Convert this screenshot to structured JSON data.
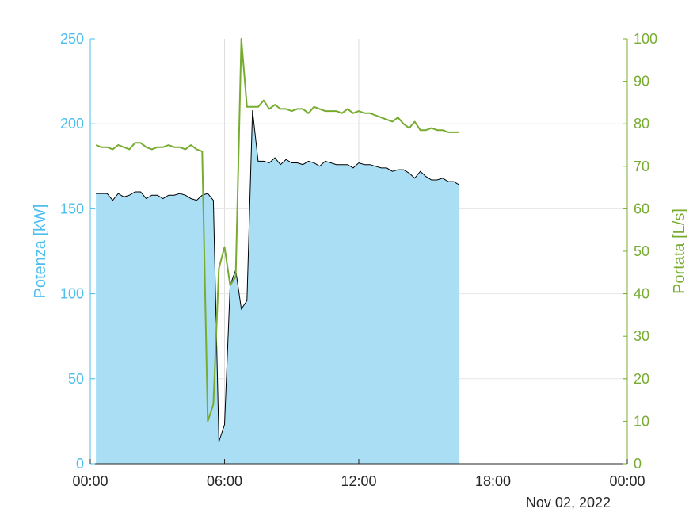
{
  "chart_data": {
    "type": "area",
    "date_label": "Nov 02, 2022",
    "x_ticks": [
      "00:00",
      "06:00",
      "12:00",
      "18:00",
      "00:00"
    ],
    "x_range_hours": [
      0,
      24
    ],
    "grid": true,
    "left_axis": {
      "label": "Potenza [kW]",
      "ylim": [
        0,
        250
      ],
      "ticks": [
        "0",
        "50",
        "100",
        "150",
        "200",
        "250"
      ],
      "tick_values": [
        0,
        50,
        100,
        150,
        200,
        250
      ],
      "color": "#4dbeee"
    },
    "right_axis": {
      "label": "Portata [L/s]",
      "ylim": [
        0,
        100
      ],
      "ticks": [
        "0",
        "10",
        "20",
        "30",
        "40",
        "50",
        "60",
        "70",
        "80",
        "90",
        "100"
      ],
      "tick_values": [
        0,
        10,
        20,
        30,
        40,
        50,
        60,
        70,
        80,
        90,
        100
      ],
      "color": "#77ac30"
    },
    "series": [
      {
        "axis": "left",
        "style": "area",
        "fill": "#a9def5",
        "stroke": "#000000",
        "x": [
          0.25,
          0.5,
          0.75,
          1.0,
          1.25,
          1.5,
          1.75,
          2.0,
          2.25,
          2.5,
          2.75,
          3.0,
          3.25,
          3.5,
          3.75,
          4.0,
          4.25,
          4.5,
          4.75,
          5.0,
          5.25,
          5.5,
          5.75,
          6.0,
          6.25,
          6.5,
          6.75,
          7.0,
          7.25,
          7.5,
          7.75,
          8.0,
          8.25,
          8.5,
          8.75,
          9.0,
          9.25,
          9.5,
          9.75,
          10.0,
          10.25,
          10.5,
          10.75,
          11.0,
          11.25,
          11.5,
          11.75,
          12.0,
          12.25,
          12.5,
          12.75,
          13.0,
          13.25,
          13.5,
          13.75,
          14.0,
          14.25,
          14.5,
          14.75,
          15.0,
          15.25,
          15.5,
          15.75,
          16.0,
          16.25,
          16.5
        ],
        "values": [
          159,
          159,
          159,
          155,
          159,
          157,
          158,
          160,
          160,
          156,
          158,
          158,
          156,
          158,
          158,
          159,
          158,
          156,
          155,
          158,
          159,
          155,
          13,
          23,
          105,
          114,
          91,
          96,
          208,
          178,
          178,
          177,
          180,
          176,
          179,
          177,
          177,
          176,
          178,
          177,
          175,
          178,
          177,
          176,
          176,
          176,
          174,
          177,
          176,
          176,
          175,
          174,
          174,
          172,
          173,
          173,
          171,
          168,
          172,
          169,
          167,
          167,
          168,
          166,
          166,
          164
        ]
      },
      {
        "axis": "right",
        "style": "line",
        "stroke": "#77ac30",
        "x": [
          0.25,
          0.5,
          0.75,
          1.0,
          1.25,
          1.5,
          1.75,
          2.0,
          2.25,
          2.5,
          2.75,
          3.0,
          3.25,
          3.5,
          3.75,
          4.0,
          4.25,
          4.5,
          4.75,
          5.0,
          5.25,
          5.5,
          5.75,
          6.0,
          6.25,
          6.5,
          6.75,
          7.0,
          7.25,
          7.5,
          7.75,
          8.0,
          8.25,
          8.5,
          8.75,
          9.0,
          9.25,
          9.5,
          9.75,
          10.0,
          10.25,
          10.5,
          10.75,
          11.0,
          11.25,
          11.5,
          11.75,
          12.0,
          12.25,
          12.5,
          12.75,
          13.0,
          13.25,
          13.5,
          13.75,
          14.0,
          14.25,
          14.5,
          14.75,
          15.0,
          15.25,
          15.5,
          15.75,
          16.0,
          16.25,
          16.5
        ],
        "values": [
          75,
          74.5,
          74.5,
          74,
          75,
          74.5,
          74,
          75.5,
          75.5,
          74.5,
          74,
          74.5,
          74.5,
          75,
          74.5,
          74.5,
          74,
          75,
          74,
          73.5,
          10,
          14,
          46,
          51,
          42,
          44,
          100,
          84,
          84,
          84,
          85.5,
          83.5,
          84.5,
          83.5,
          83.5,
          83,
          83.5,
          83.5,
          82.5,
          84,
          83.5,
          83,
          83,
          83,
          82.5,
          83.5,
          82.5,
          83,
          82.5,
          82.5,
          82,
          81.5,
          81,
          80.5,
          81.5,
          80,
          79,
          80.5,
          78.5,
          78.5,
          79,
          78.5,
          78.5,
          78,
          78,
          78
        ]
      }
    ]
  }
}
